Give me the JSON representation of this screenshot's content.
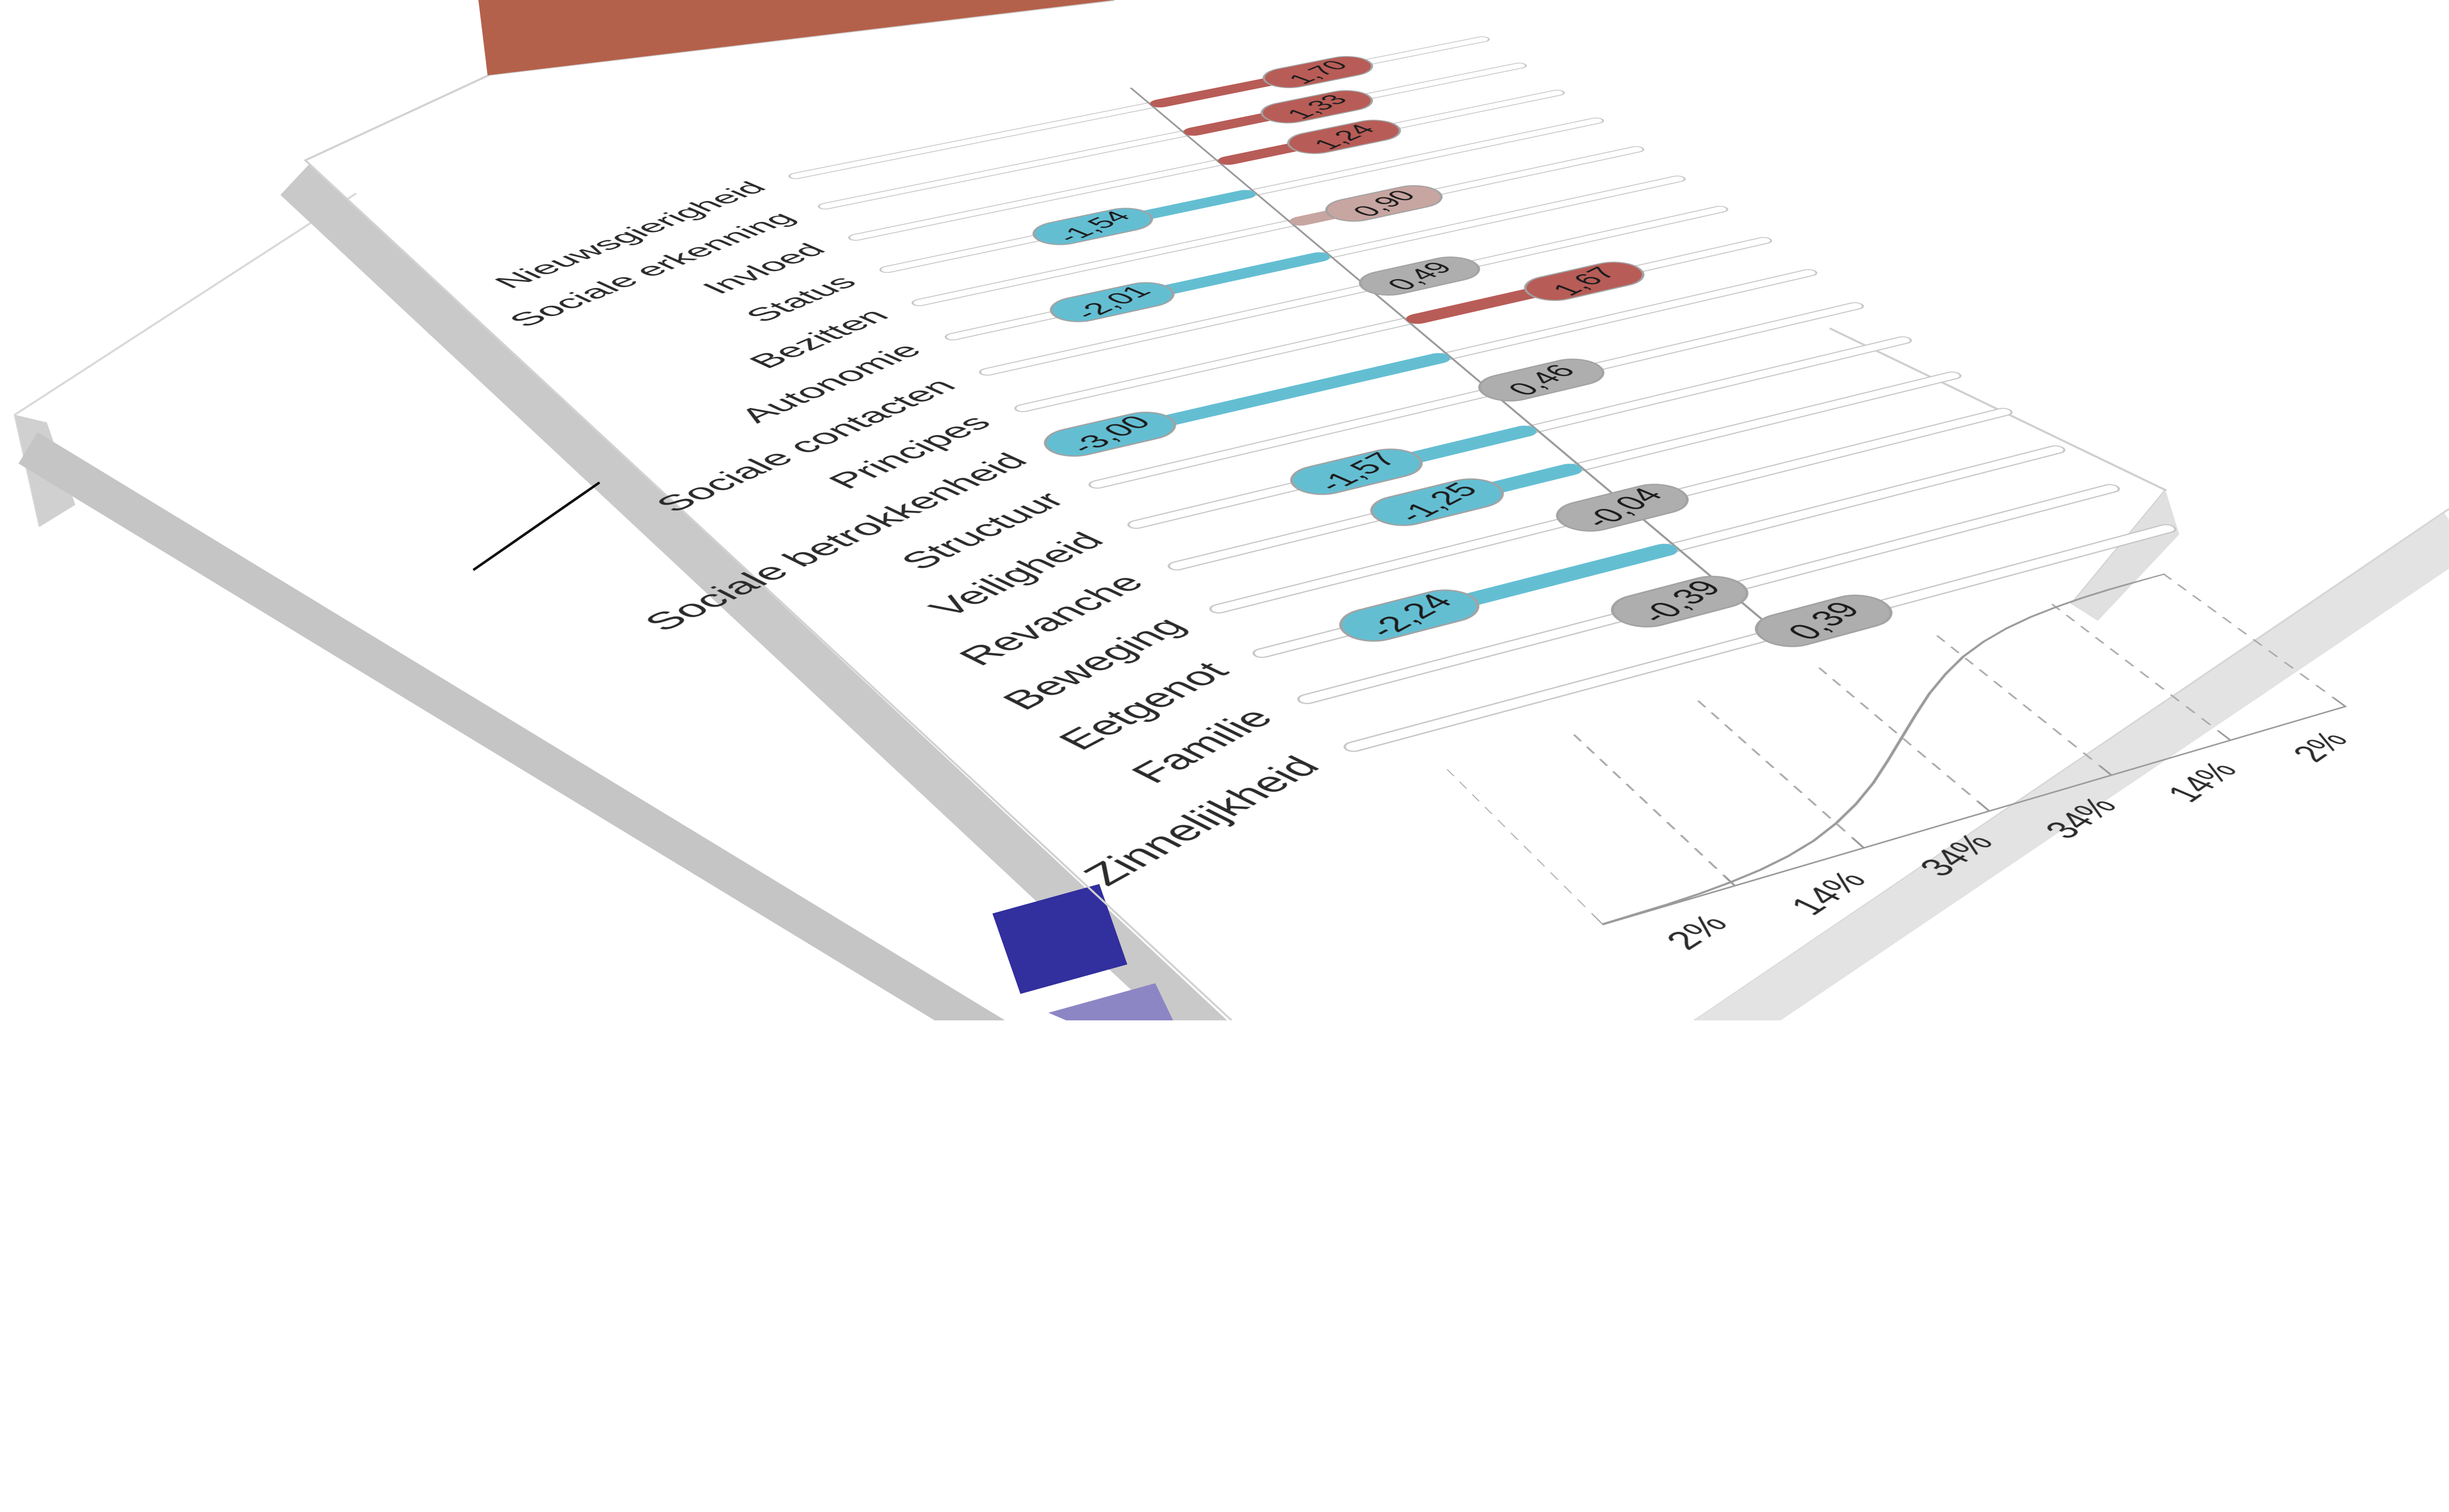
{
  "chart": {
    "rows": [
      {
        "label": "Nieuwsgierigheid",
        "value": 1.7,
        "display": "1,70",
        "level": "strong"
      },
      {
        "label": "Sociale erkenning",
        "value": 1.33,
        "display": "1,33",
        "level": "strong"
      },
      {
        "label": "Invloed",
        "value": 1.24,
        "display": "1,24",
        "level": "strong"
      },
      {
        "label": "Status",
        "value": -1.54,
        "display": "-1,54",
        "level": "weak"
      },
      {
        "label": "Bezitten",
        "value": 0.9,
        "display": "0,90",
        "level": "moderate"
      },
      {
        "label": "Autonomie",
        "value": -2.01,
        "display": "-2,01",
        "level": "weak"
      },
      {
        "label": "Sociale contacten",
        "value": 0.49,
        "display": "0,49",
        "level": "average"
      },
      {
        "label": "Principes",
        "value": 1.67,
        "display": "1,67",
        "level": "strong"
      },
      {
        "label": "Sociale betrokkenheid",
        "value": -3.0,
        "display": "-3,00",
        "level": "weak"
      },
      {
        "label": "Structuur",
        "value": 0.46,
        "display": "0,46",
        "level": "average"
      },
      {
        "label": "Veiligheid",
        "value": -1.57,
        "display": "-1,57",
        "level": "weak"
      },
      {
        "label": "Revanche",
        "value": -1.25,
        "display": "-1,25",
        "level": "weak"
      },
      {
        "label": "Beweging",
        "value": -0.04,
        "display": "-0,04",
        "level": "average"
      },
      {
        "label": "Eetgenot",
        "value": -2.24,
        "display": "-2,24",
        "level": "weak"
      },
      {
        "label": "Familie",
        "value": -0.39,
        "display": "-0,39",
        "level": "average"
      },
      {
        "label": "Zinnelijkheid",
        "value": 0.39,
        "display": "0,39",
        "level": "average"
      }
    ],
    "distribution": {
      "percent_labels": [
        "2%",
        "14%",
        "34%",
        "34%",
        "14%",
        "2%"
      ],
      "curve": "cumulative-normal",
      "sigma_boundaries": [
        -3,
        -2,
        -1,
        0,
        1,
        2,
        3
      ]
    },
    "decimal_separator": ","
  },
  "colors": {
    "strong": "#b85c57",
    "moderate": "#c7a5a1",
    "average": "#aeaeae",
    "weak": "#64bed2",
    "pill_border": "#a2a2a2",
    "track_border": "#c6c6c6",
    "zero_line": "#9a9a9a",
    "cover_triangle": "#b4614b",
    "cover_stripe_dark": "#322f9e",
    "cover_stripe_light": "#8d86c5",
    "ink_line": "#111111"
  },
  "chart_data": {
    "type": "bar",
    "orientation": "horizontal",
    "title": "",
    "xlabel": "",
    "ylabel": "",
    "categories": [
      "Nieuwsgierigheid",
      "Sociale erkenning",
      "Invloed",
      "Status",
      "Bezitten",
      "Autonomie",
      "Sociale contacten",
      "Principes",
      "Sociale betrokkenheid",
      "Structuur",
      "Veiligheid",
      "Revanche",
      "Beweging",
      "Eetgenot",
      "Familie",
      "Zinnelijkheid"
    ],
    "values": [
      1.7,
      1.33,
      1.24,
      -1.54,
      0.9,
      -2.01,
      0.49,
      1.67,
      -3.0,
      0.46,
      -1.57,
      -1.25,
      -0.04,
      -2.24,
      -0.39,
      0.39
    ],
    "value_labels": [
      "1,70",
      "1,33",
      "1,24",
      "-1,54",
      "0,90",
      "-2,01",
      "0,49",
      "1,67",
      "-3,00",
      "0,46",
      "-1,57",
      "-1,25",
      "-0,04",
      "-2,24",
      "-0,39",
      "0,39"
    ],
    "bar_colors": [
      "#b85c57",
      "#b85c57",
      "#b85c57",
      "#64bed2",
      "#c7a5a1",
      "#64bed2",
      "#aeaeae",
      "#b85c57",
      "#64bed2",
      "#aeaeae",
      "#64bed2",
      "#64bed2",
      "#aeaeae",
      "#64bed2",
      "#aeaeae",
      "#aeaeae"
    ],
    "xlim": [
      -3.5,
      3.5
    ],
    "zero_line": true,
    "grid": false,
    "legend_position": "none",
    "distribution_axis": {
      "segment_percents": [
        2,
        14,
        34,
        34,
        14,
        2
      ],
      "segment_labels": [
        "2%",
        "14%",
        "34%",
        "34%",
        "14%",
        "2%"
      ],
      "boundaries": [
        -3,
        -2,
        -1,
        0,
        1,
        2,
        3
      ],
      "curve": "cumulative-normal"
    }
  }
}
